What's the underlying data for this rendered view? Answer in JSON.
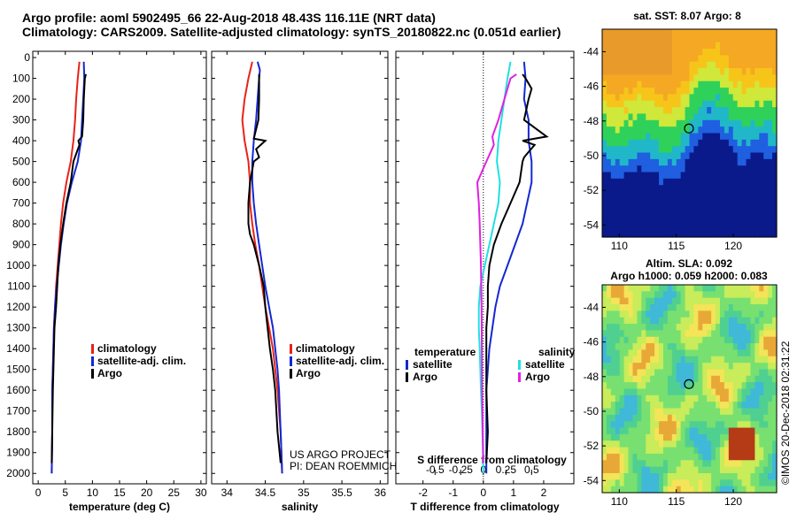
{
  "header": {
    "title_line1": "Argo profile: aoml 5902495_66 22-Aug-2018 48.43S 116.11E (NRT data)",
    "title_line2": "Climatology: CARS2009. Satellite-adjusted climatology: synTS_20180822.nc (0.051d earlier)"
  },
  "colors": {
    "climatology": "#e8221a",
    "satellite": "#1428d2",
    "argo": "#000000",
    "salinity_satellite": "#20e0e0",
    "salinity_argo": "#e020e0"
  },
  "chart_data": [
    {
      "type": "line",
      "id": "temperature",
      "xlabel": "temperature (deg C)",
      "xlim": [
        -1,
        31
      ],
      "x_ticks": [
        0,
        5,
        10,
        15,
        20,
        25,
        30
      ],
      "ylim": [
        2050,
        0
      ],
      "y_ticks": [
        0,
        100,
        200,
        300,
        400,
        500,
        600,
        700,
        800,
        900,
        1000,
        1100,
        1200,
        1300,
        1400,
        1500,
        1600,
        1700,
        1800,
        1900,
        2000
      ],
      "legend": [
        "climatology",
        "satellite-adj. clim.",
        "Argo"
      ],
      "legend_position": "lower-right",
      "series": [
        {
          "name": "climatology",
          "color": "#e8221a",
          "x": [
            7.6,
            7.3,
            7.0,
            6.8,
            6.5,
            6.0,
            5.2,
            4.6,
            4.2,
            3.9,
            3.6,
            3.3,
            3.1,
            2.9,
            2.8,
            2.7,
            2.6,
            2.6,
            2.6,
            2.5
          ],
          "y": [
            20,
            100,
            200,
            300,
            400,
            500,
            600,
            700,
            800,
            900,
            1000,
            1100,
            1200,
            1300,
            1400,
            1500,
            1600,
            1700,
            1800,
            2000
          ]
        },
        {
          "name": "satellite-adj. clim.",
          "color": "#1428d2",
          "x": [
            8.4,
            8.5,
            8.3,
            8.1,
            7.9,
            7.3,
            6.2,
            5.3,
            4.7,
            4.2,
            3.8,
            3.4,
            3.1,
            2.9,
            2.8,
            2.7,
            2.6,
            2.6,
            2.6,
            2.5
          ],
          "y": [
            20,
            100,
            200,
            300,
            400,
            500,
            600,
            700,
            800,
            900,
            1000,
            1100,
            1200,
            1300,
            1400,
            1500,
            1600,
            1700,
            1800,
            2000
          ]
        },
        {
          "name": "Argo",
          "color": "#000000",
          "x": [
            8.8,
            8.6,
            8.5,
            8.4,
            8.3,
            8.1,
            7.4,
            7.6,
            6.5,
            6.0,
            5.2,
            4.6,
            4.1,
            3.7,
            3.5,
            3.3,
            3.0,
            2.9,
            2.8,
            2.7,
            2.6,
            2.5
          ],
          "y": [
            80,
            100,
            150,
            200,
            300,
            380,
            400,
            420,
            500,
            600,
            700,
            800,
            900,
            1000,
            1100,
            1200,
            1300,
            1400,
            1500,
            1600,
            1800,
            1950
          ]
        }
      ]
    },
    {
      "type": "line",
      "id": "salinity",
      "xlabel": "salinity",
      "xlim": [
        33.8,
        36.1
      ],
      "x_ticks": [
        34,
        34.5,
        35,
        35.5,
        36
      ],
      "ylim": [
        2050,
        0
      ],
      "legend": [
        "climatology",
        "satellite-adj. clim.",
        "Argo"
      ],
      "legend_position": "lower-right",
      "annotations": [
        "US ARGO PROJECT",
        "PI: DEAN ROEMMICH"
      ],
      "series": [
        {
          "name": "climatology",
          "color": "#e8221a",
          "x": [
            34.33,
            34.28,
            34.23,
            34.2,
            34.23,
            34.28,
            34.3,
            34.3,
            34.33,
            34.37,
            34.42,
            34.46,
            34.5,
            34.55,
            34.6,
            34.63,
            34.66,
            34.68,
            34.7,
            34.72
          ],
          "y": [
            20,
            100,
            200,
            300,
            400,
            500,
            600,
            700,
            800,
            900,
            1000,
            1100,
            1200,
            1300,
            1400,
            1500,
            1600,
            1700,
            1800,
            2000
          ]
        },
        {
          "name": "satellite-adj. clim.",
          "color": "#1428d2",
          "x": [
            34.4,
            34.43,
            34.42,
            34.4,
            34.38,
            34.35,
            34.33,
            34.33,
            34.35,
            34.38,
            34.42,
            34.46,
            34.5,
            34.55,
            34.6,
            34.63,
            34.66,
            34.68,
            34.7,
            34.72
          ],
          "y": [
            20,
            60,
            100,
            200,
            300,
            400,
            500,
            600,
            700,
            800,
            900,
            1000,
            1100,
            1200,
            1300,
            1400,
            1500,
            1600,
            1800,
            2000
          ]
        },
        {
          "name": "Argo",
          "color": "#000000",
          "x": [
            34.42,
            34.42,
            34.42,
            34.41,
            34.35,
            34.5,
            34.38,
            34.42,
            34.35,
            34.3,
            34.28,
            34.28,
            34.3,
            34.35,
            34.42,
            34.48,
            34.5,
            34.53,
            34.56,
            34.6,
            34.63,
            34.66,
            34.7
          ],
          "y": [
            80,
            100,
            200,
            300,
            390,
            400,
            440,
            480,
            500,
            600,
            700,
            800,
            850,
            900,
            1000,
            1100,
            1200,
            1300,
            1400,
            1500,
            1600,
            1800,
            1950
          ]
        }
      ]
    },
    {
      "type": "line",
      "id": "difference",
      "xlabel": "T difference from climatology",
      "xlabel_top": "S difference from climatology",
      "xlim": [
        -2.9,
        3.0
      ],
      "x_ticks": [
        -2,
        -1,
        0,
        1,
        2
      ],
      "s_ticks": [
        "-0.5",
        "-0.25",
        "0",
        "0.25",
        "0.5"
      ],
      "ylim": [
        2050,
        0
      ],
      "legend_temperature": [
        "temperature",
        "satellite",
        "Argo"
      ],
      "legend_salinity": [
        "salinity",
        "satellite",
        "Argo"
      ],
      "series": [
        {
          "name": "T satellite",
          "color": "#1428d2",
          "x": [
            1.35,
            1.4,
            1.35,
            1.5,
            1.5,
            1.6,
            1.6,
            1.45,
            1.3,
            1.05,
            0.8,
            0.55,
            0.4,
            0.3,
            0.2,
            0.15,
            0.1,
            0.1,
            0.1,
            0.1
          ],
          "y": [
            20,
            100,
            200,
            300,
            400,
            500,
            600,
            700,
            800,
            900,
            1000,
            1100,
            1200,
            1300,
            1400,
            1500,
            1600,
            1700,
            1800,
            2000
          ]
        },
        {
          "name": "T Argo",
          "color": "#000000",
          "x": [
            1.3,
            1.4,
            1.6,
            1.5,
            1.35,
            2.1,
            1.3,
            1.7,
            1.35,
            1.3,
            1.2,
            0.9,
            0.6,
            0.35,
            0.2,
            0.15,
            0.15,
            0.1,
            0.1,
            0.1,
            0.15,
            0.1
          ],
          "y": [
            80,
            100,
            150,
            200,
            300,
            380,
            400,
            420,
            480,
            500,
            600,
            700,
            800,
            900,
            1000,
            1100,
            1200,
            1300,
            1400,
            1600,
            1800,
            1950
          ]
        },
        {
          "name": "S satellite",
          "color": "#20e0e0",
          "x": [
            0.9,
            0.8,
            0.7,
            0.6,
            0.5,
            0.45,
            0.55,
            0.5,
            0.35,
            0.2,
            0.05,
            -0.1,
            -0.15,
            -0.15,
            -0.12,
            -0.1,
            -0.08,
            -0.05,
            -0.03,
            0.0
          ],
          "y": [
            20,
            100,
            200,
            300,
            400,
            500,
            600,
            700,
            800,
            900,
            1000,
            1100,
            1200,
            1300,
            1400,
            1500,
            1600,
            1700,
            1800,
            2000
          ]
        },
        {
          "name": "S Argo",
          "color": "#e020e0",
          "x": [
            1.1,
            0.9,
            0.7,
            0.5,
            0.3,
            0.35,
            0.1,
            -0.2,
            -0.15,
            -0.12,
            -0.1,
            -0.08,
            -0.06,
            -0.05,
            -0.04,
            -0.02,
            0.0
          ],
          "y": [
            80,
            100,
            200,
            300,
            380,
            420,
            500,
            600,
            700,
            800,
            900,
            1000,
            1200,
            1400,
            1600,
            1800,
            1950
          ]
        }
      ]
    },
    {
      "type": "heatmap",
      "id": "sst_map",
      "title": "sat. SST: 8.07 Argo: 8",
      "xlim": [
        108.5,
        123.8
      ],
      "ylim": [
        -54.7,
        -42.7
      ],
      "x_ticks": [
        110,
        115,
        120
      ],
      "y_ticks": [
        -44,
        -46,
        -48,
        -50,
        -52,
        -54
      ],
      "marker": {
        "lon": 116.11,
        "lat": -48.43
      }
    },
    {
      "type": "heatmap",
      "id": "sla_map",
      "title": "Altim. SLA: 0.092",
      "subtitle": "Argo h1000: 0.059 h2000: 0.083",
      "xlim": [
        108.5,
        123.8
      ],
      "ylim": [
        -54.7,
        -42.7
      ],
      "x_ticks": [
        110,
        115,
        120
      ],
      "y_ticks": [
        -44,
        -46,
        -48,
        -50,
        -52,
        -54
      ],
      "marker": {
        "lon": 116.11,
        "lat": -48.43
      }
    }
  ],
  "stamp": "©IMOS 20-Dec-2018 02:31:22"
}
